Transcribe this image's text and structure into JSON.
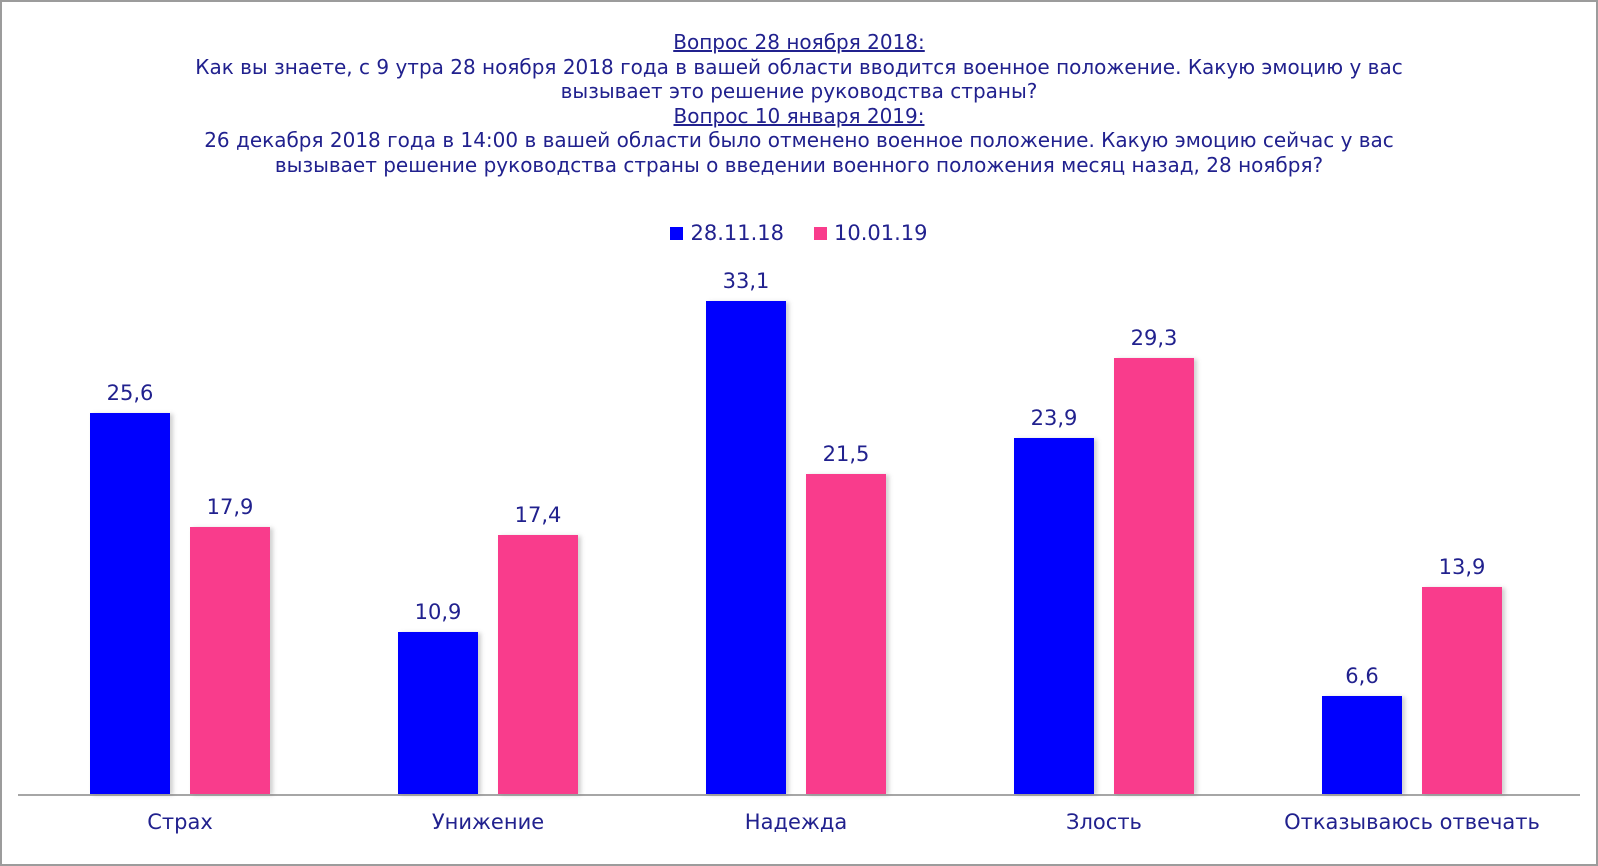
{
  "title": {
    "lines": [
      {
        "text": "Вопрос 28 ноября 2018:",
        "underline": true
      },
      {
        "text": "Как вы знаете, с 9 утра 28 ноября 2018 года в вашей области вводится военное положение. Какую эмоцию у вас",
        "underline": false
      },
      {
        "text": "вызывает это решение руководства страны?",
        "underline": false
      },
      {
        "text": "Вопрос 10 января 2019:",
        "underline": true
      },
      {
        "text": "26 декабря 2018 года в 14:00 в вашей области было отменено военное положение. Какую эмоцию сейчас у вас",
        "underline": false
      },
      {
        "text": "вызывает решение руководства страны о введении военного положения месяц назад, 28 ноября?",
        "underline": false
      }
    ]
  },
  "chart_data": {
    "type": "bar",
    "categories": [
      "Страх",
      "Унижение",
      "Надежда",
      "Злость",
      "Отказываюсь отвечать"
    ],
    "series": [
      {
        "name": "28.11.18",
        "color": "#0000fe",
        "values": [
          25.6,
          10.9,
          33.1,
          23.9,
          6.6
        ],
        "labels": [
          "25,6",
          "10,9",
          "33,1",
          "23,9",
          "6,6"
        ]
      },
      {
        "name": "10.01.19",
        "color": "#f93c8c",
        "values": [
          17.9,
          17.4,
          21.5,
          29.3,
          13.9
        ],
        "labels": [
          "17,9",
          "17,4",
          "21,5",
          "29,3",
          "13,9"
        ]
      }
    ],
    "ylim": [
      0,
      36
    ],
    "grid": false,
    "legend_position": "top-center",
    "value_labels_shown": true,
    "colors": {
      "text": "#21218e",
      "axis_line": "#a6a6a6",
      "frame_border": "#9c9c9c",
      "background": "#ffffff"
    }
  }
}
